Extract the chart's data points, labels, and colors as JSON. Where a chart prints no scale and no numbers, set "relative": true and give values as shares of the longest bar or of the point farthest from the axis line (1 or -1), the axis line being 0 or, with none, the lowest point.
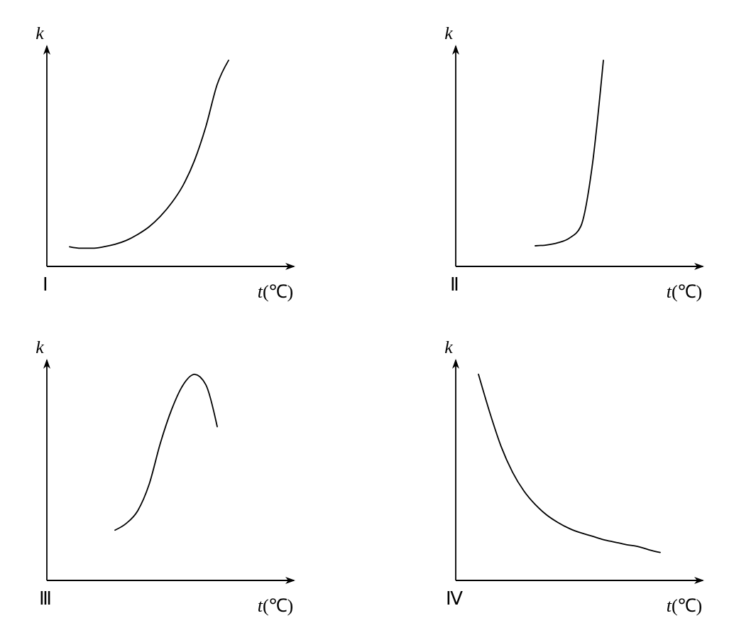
{
  "chart_data": [
    {
      "type": "line",
      "title": "Ⅰ",
      "xlabel": "t(℃)",
      "ylabel": "k",
      "relative": true,
      "color": "#000000",
      "categories": [
        null,
        null,
        null,
        null,
        null,
        null,
        null,
        null,
        null,
        null,
        null,
        null,
        null,
        null,
        null,
        null,
        null,
        null,
        null,
        null
      ],
      "values": [
        null,
        null,
        0.095,
        0.088,
        0.088,
        0.095,
        0.107,
        0.126,
        0.155,
        0.192,
        0.243,
        0.309,
        0.394,
        0.514,
        0.678,
        0.883,
        1,
        null,
        null,
        null
      ]
    },
    {
      "type": "line",
      "title": "Ⅱ",
      "xlabel": "t(℃)",
      "ylabel": "k",
      "relative": true,
      "color": "#000000",
      "categories": [
        null,
        null,
        null,
        null,
        null,
        null,
        null,
        null,
        null,
        null,
        null,
        null,
        null,
        null,
        null,
        null,
        null,
        null,
        null,
        null
      ],
      "values": [
        null,
        null,
        null,
        null,
        null,
        null,
        null,
        0.1,
        0.104,
        0.115,
        0.137,
        0.193,
        0.48,
        1,
        null,
        null,
        null,
        null,
        null,
        null
      ]
    },
    {
      "type": "line",
      "title": "Ⅲ",
      "xlabel": "t(℃)",
      "ylabel": "k",
      "relative": true,
      "color": "#000000",
      "categories": [
        null,
        null,
        null,
        null,
        null,
        null,
        null,
        null,
        null,
        null,
        null,
        null,
        null,
        null,
        null,
        null,
        null,
        null,
        null,
        null
      ],
      "values": [
        null,
        null,
        null,
        null,
        null,
        null,
        0.244,
        0.277,
        0.338,
        0.465,
        0.667,
        0.831,
        0.949,
        1,
        0.949,
        0.746,
        null,
        null,
        null,
        null
      ]
    },
    {
      "type": "line",
      "title": "Ⅳ",
      "xlabel": "t(℃)",
      "ylabel": "k",
      "relative": true,
      "color": "#000000",
      "categories": [
        null,
        null,
        null,
        null,
        null,
        null,
        null,
        null,
        null,
        null,
        null,
        null,
        null,
        null,
        null,
        null,
        null,
        null,
        null,
        null
      ],
      "values": [
        null,
        null,
        1,
        0.814,
        0.649,
        0.525,
        0.434,
        0.368,
        0.318,
        0.281,
        0.252,
        0.231,
        0.215,
        0.198,
        0.186,
        0.174,
        0.165,
        0.149,
        0.136,
        null
      ]
    }
  ]
}
